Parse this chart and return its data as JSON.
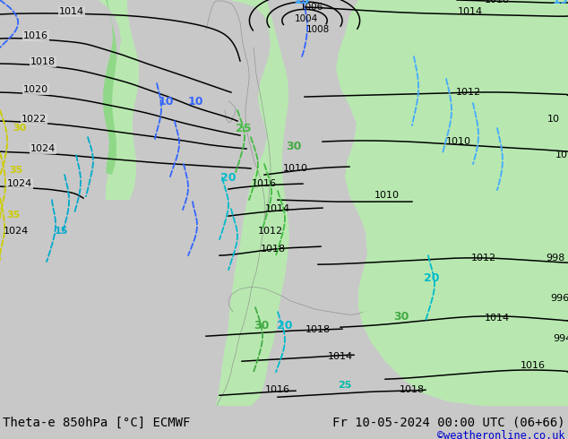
{
  "title_left": "Theta-e 850hPa [°C] ECMWF",
  "title_right": "Fr 10-05-2024 00:00 UTC (06+66)",
  "copyright": "©weatheronline.co.uk",
  "bg_color": "#c8c8c8",
  "map_bg": "#d8d8d8",
  "green_light": "#b8e8b0",
  "green_mid": "#90d888",
  "isobar_color": "#000000",
  "coast_color": "#888888",
  "theta10_color": "#3366ff",
  "theta15_color": "#44aaff",
  "theta20_color": "#00bbcc",
  "theta25_color": "#00ccaa",
  "theta30_color": "#44cc44",
  "theta35_color": "#cccc00",
  "title_fontsize": 10,
  "bottom_bar_color": "#c8c8c8",
  "figsize": [
    6.34,
    4.9
  ],
  "dpi": 100
}
